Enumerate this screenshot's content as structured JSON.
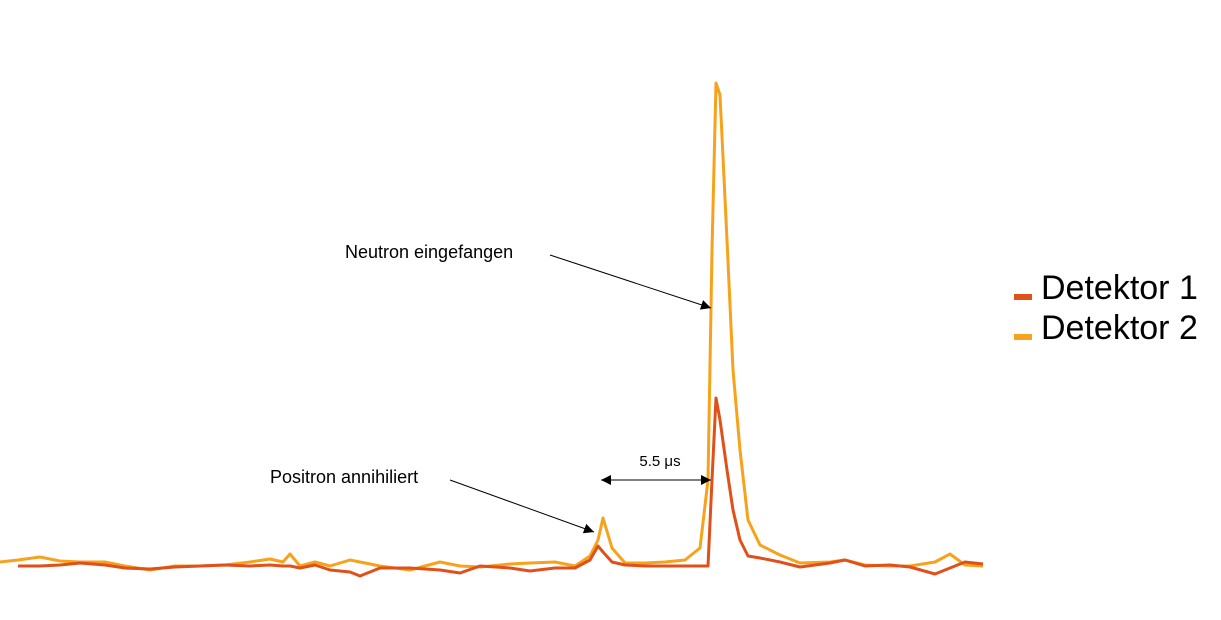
{
  "chart_data": {
    "type": "line",
    "x": [
      0,
      18,
      40,
      60,
      80,
      105,
      125,
      150,
      175,
      200,
      225,
      250,
      270,
      283,
      290,
      300,
      315,
      330,
      350,
      360,
      380,
      410,
      440,
      460,
      480,
      510,
      530,
      555,
      575,
      590,
      598,
      603,
      612,
      625,
      645,
      665,
      685,
      700,
      708,
      712,
      716,
      720,
      727,
      733,
      740,
      748,
      760,
      780,
      800,
      830,
      845,
      865,
      890,
      910,
      935,
      950,
      965,
      983
    ],
    "xlim": [
      0,
      983
    ],
    "ylim": [
      0,
      540
    ],
    "series": [
      {
        "name": "Detektor 1",
        "color": "#e0501a",
        "values": [
          null,
          34,
          34,
          35,
          37,
          35,
          32,
          31,
          33,
          34,
          35,
          34,
          35,
          34,
          34,
          32,
          35,
          30,
          28,
          24,
          32,
          32,
          30,
          27,
          34,
          32,
          29,
          32,
          32,
          40,
          54,
          48,
          38,
          35,
          34,
          34,
          34,
          34,
          34,
          120,
          202,
          180,
          130,
          90,
          60,
          44,
          42,
          38,
          33,
          37,
          40,
          34,
          35,
          33,
          26,
          32,
          38,
          36
        ]
      },
      {
        "name": "Detektor 2",
        "color": "#f7a21b",
        "values": [
          38,
          40,
          43,
          39,
          38,
          38,
          34,
          30,
          34,
          34,
          35,
          38,
          41,
          38,
          46,
          34,
          38,
          34,
          40,
          38,
          34,
          30,
          38,
          34,
          33,
          36,
          37,
          38,
          34,
          44,
          60,
          82,
          52,
          37,
          37,
          38,
          40,
          52,
          120,
          350,
          517,
          505,
          360,
          230,
          150,
          80,
          55,
          45,
          37,
          38,
          40,
          35,
          34,
          34,
          38,
          46,
          35,
          34
        ]
      }
    ],
    "annotations": [
      "Neutron eingefangen",
      "Positron annihiliert",
      "5.5 μs"
    ]
  }
}
